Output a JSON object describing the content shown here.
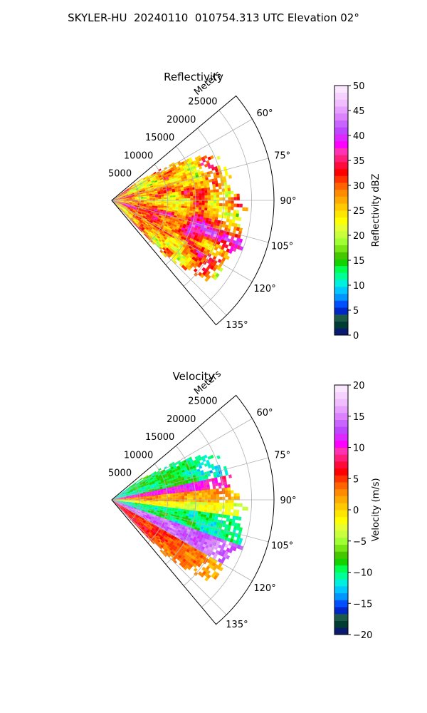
{
  "suptitle": "SKYLER-HU  20240110  010754.313 UTC Elevation 02°",
  "chart_data": [
    {
      "type": "heatmap",
      "projection": "polar-sector",
      "title": "Reflectivity",
      "radial_label": "Meters",
      "radial_ticks": [
        5000,
        10000,
        15000,
        20000,
        25000
      ],
      "radial_tick_labels": [
        "5000",
        "10000",
        "15000",
        "20000",
        "25000"
      ],
      "radial_range": [
        0,
        29000
      ],
      "azimuth_range_deg": [
        50,
        140
      ],
      "azimuth_ticks": [
        60,
        75,
        90,
        105,
        120,
        135
      ],
      "azimuth_tick_labels": [
        "60°",
        "75°",
        "90°",
        "105°",
        "120°",
        "135°"
      ],
      "grid": true,
      "colorbar": {
        "label": "Reflectivity dBZ",
        "range": [
          0,
          50
        ],
        "ticks": [
          0,
          5,
          10,
          15,
          20,
          25,
          30,
          35,
          40,
          45,
          50
        ],
        "tick_labels": [
          "0",
          "5",
          "10",
          "15",
          "20",
          "25",
          "30",
          "35",
          "40",
          "45",
          "50"
        ]
      },
      "colors": [
        "#0a1a6e",
        "#003c32",
        "#1e5a4a",
        "#0028c8",
        "#0050ff",
        "#0096ff",
        "#00c8ff",
        "#00f0e0",
        "#00ff96",
        "#00ff50",
        "#14d200",
        "#46c800",
        "#78e614",
        "#a0ff32",
        "#c8ff3c",
        "#e6ff32",
        "#ffff00",
        "#ffe600",
        "#ffc800",
        "#ffaa00",
        "#ff8c00",
        "#ff6400",
        "#ff3200",
        "#ff0000",
        "#ff0a3c",
        "#ff1e78",
        "#ff32b4",
        "#ff00ff",
        "#dc28ff",
        "#be46ff",
        "#c864ff",
        "#dc82ff",
        "#e6a0ff",
        "#f0beff",
        "#f5d2ff",
        "#fae6ff"
      ]
    },
    {
      "type": "heatmap",
      "projection": "polar-sector",
      "title": "Velocity",
      "radial_label": "Meters",
      "radial_ticks": [
        5000,
        10000,
        15000,
        20000,
        25000
      ],
      "radial_tick_labels": [
        "5000",
        "10000",
        "15000",
        "20000",
        "25000"
      ],
      "radial_range": [
        0,
        29000
      ],
      "azimuth_range_deg": [
        50,
        140
      ],
      "azimuth_ticks": [
        60,
        75,
        90,
        105,
        120,
        135
      ],
      "azimuth_tick_labels": [
        "60°",
        "75°",
        "90°",
        "105°",
        "120°",
        "135°"
      ],
      "grid": true,
      "colorbar": {
        "label": "Velocity (m/s)",
        "range": [
          -20,
          20
        ],
        "ticks": [
          -20,
          -15,
          -10,
          -5,
          0,
          5,
          10,
          15,
          20
        ],
        "tick_labels": [
          "−20",
          "−15",
          "−10",
          "−5",
          "0",
          "5",
          "10",
          "15",
          "20"
        ]
      },
      "colors": [
        "#0a1a6e",
        "#003c32",
        "#1e5a4a",
        "#0028c8",
        "#0050ff",
        "#0096ff",
        "#00c8ff",
        "#00f0e0",
        "#00ff96",
        "#00ff50",
        "#14d200",
        "#46c800",
        "#78e614",
        "#a0ff32",
        "#c8ff3c",
        "#e6ff32",
        "#ffff00",
        "#ffe600",
        "#ffc800",
        "#ffaa00",
        "#ff8c00",
        "#ff6400",
        "#ff3200",
        "#ff0000",
        "#ff0a3c",
        "#ff1e78",
        "#ff32b4",
        "#ff00ff",
        "#dc28ff",
        "#be46ff",
        "#c864ff",
        "#dc82ff",
        "#e6a0ff",
        "#f0beff",
        "#f5d2ff",
        "#fae6ff"
      ]
    }
  ]
}
